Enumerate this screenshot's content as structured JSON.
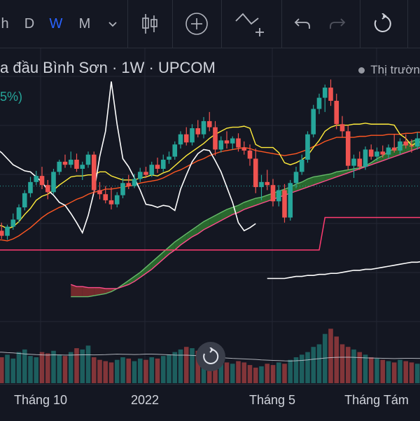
{
  "toolbar": {
    "intervals": [
      "h",
      "D",
      "W",
      "M"
    ],
    "active_interval": "W",
    "active_color": "#2962ff"
  },
  "legend": {
    "title": "a đầu Bình Sơn · 1W · UPCOM",
    "pct": "5%)",
    "market_status": "Thị trườn"
  },
  "chart_data": {
    "type": "candlestick",
    "x_tick_labels": [
      "Tháng 10",
      "2022",
      "Tháng 5",
      "Tháng Tám"
    ],
    "colors": {
      "up": "#26a69a",
      "down": "#ef5350",
      "cloud_bull": "#2e7d32",
      "cloud_bear": "#8b2f2f"
    },
    "candles": [
      [
        19.4,
        20.5,
        19.1,
        20.1
      ],
      [
        20.1,
        20.9,
        19.3,
        19.6
      ],
      [
        19.6,
        20.7,
        19.2,
        20.5
      ],
      [
        20.5,
        21.8,
        20.2,
        21.2
      ],
      [
        21.2,
        22.7,
        20.9,
        22.4
      ],
      [
        22.4,
        24.1,
        22.1,
        23.8
      ],
      [
        23.8,
        25.4,
        23.4,
        24.9
      ],
      [
        24.9,
        26.0,
        24.6,
        25.5
      ],
      [
        25.5,
        26.4,
        24.2,
        24.6
      ],
      [
        24.6,
        25.1,
        23.2,
        23.9
      ],
      [
        23.9,
        26.2,
        23.7,
        25.9
      ],
      [
        25.9,
        27.1,
        25.6,
        26.9
      ],
      [
        26.9,
        27.6,
        26.3,
        26.6
      ],
      [
        26.6,
        27.9,
        26.3,
        27.1
      ],
      [
        27.1,
        27.7,
        25.9,
        26.2
      ],
      [
        26.2,
        26.9,
        25.1,
        26.6
      ],
      [
        26.6,
        27.9,
        26.3,
        27.6
      ],
      [
        27.6,
        27.9,
        23.7,
        24.1
      ],
      [
        24.1,
        24.9,
        23.2,
        23.7
      ],
      [
        23.7,
        24.5,
        22.8,
        23.1
      ],
      [
        23.1,
        24.4,
        22.2,
        22.7
      ],
      [
        22.7,
        23.9,
        22.4,
        23.6
      ],
      [
        23.6,
        25.3,
        23.3,
        24.8
      ],
      [
        24.8,
        25.6,
        24.2,
        24.5
      ],
      [
        24.5,
        25.7,
        24.3,
        25.2
      ],
      [
        25.2,
        26.3,
        24.9,
        25.9
      ],
      [
        25.9,
        26.4,
        25.3,
        25.6
      ],
      [
        25.6,
        26.9,
        25.4,
        26.6
      ],
      [
        26.6,
        27.3,
        25.8,
        26.2
      ],
      [
        26.2,
        27.6,
        25.9,
        27.1
      ],
      [
        27.1,
        27.9,
        26.7,
        27.4
      ],
      [
        27.4,
        28.9,
        27.1,
        28.6
      ],
      [
        28.6,
        29.9,
        28.2,
        29.6
      ],
      [
        29.6,
        30.3,
        28.5,
        28.8
      ],
      [
        28.8,
        30.6,
        28.5,
        30.2
      ],
      [
        30.2,
        31.0,
        29.3,
        29.6
      ],
      [
        29.6,
        31.3,
        29.2,
        30.9
      ],
      [
        30.9,
        31.8,
        29.9,
        30.3
      ],
      [
        30.3,
        30.9,
        27.5,
        28.1
      ],
      [
        28.1,
        29.4,
        27.8,
        29.0
      ],
      [
        29.0,
        29.9,
        28.2,
        28.7
      ],
      [
        28.7,
        29.4,
        28.1,
        29.2
      ],
      [
        29.2,
        29.7,
        27.9,
        28.3
      ],
      [
        28.3,
        28.9,
        27.6,
        28.0
      ],
      [
        28.0,
        28.6,
        26.5,
        27.2
      ],
      [
        27.2,
        28.2,
        23.8,
        24.4
      ],
      [
        24.4,
        25.6,
        23.1,
        24.9
      ],
      [
        24.9,
        26.1,
        24.1,
        24.6
      ],
      [
        24.6,
        25.2,
        22.5,
        23.0
      ],
      [
        23.0,
        24.6,
        22.5,
        24.1
      ],
      [
        24.1,
        24.7,
        20.9,
        21.4
      ],
      [
        21.4,
        25.1,
        21.1,
        24.8
      ],
      [
        24.8,
        26.4,
        24.3,
        25.9
      ],
      [
        25.9,
        27.6,
        25.6,
        27.1
      ],
      [
        27.1,
        29.9,
        26.8,
        29.6
      ],
      [
        29.6,
        32.5,
        29.3,
        32.1
      ],
      [
        32.1,
        33.6,
        31.6,
        33.2
      ],
      [
        33.2,
        34.5,
        31.8,
        34.2
      ],
      [
        34.2,
        35.0,
        32.4,
        32.9
      ],
      [
        32.9,
        33.6,
        30.1,
        30.6
      ],
      [
        30.6,
        31.4,
        29.3,
        29.9
      ],
      [
        29.9,
        30.5,
        26.1,
        26.5
      ],
      [
        26.5,
        27.6,
        25.3,
        27.2
      ],
      [
        27.2,
        27.9,
        26.1,
        26.4
      ],
      [
        26.4,
        28.4,
        26.1,
        28.1
      ],
      [
        28.1,
        28.6,
        27.1,
        27.4
      ],
      [
        27.4,
        28.3,
        27.0,
        27.9
      ],
      [
        27.9,
        28.5,
        27.3,
        27.6
      ],
      [
        27.6,
        28.6,
        27.2,
        28.3
      ],
      [
        28.3,
        29.6,
        27.8,
        28.0
      ],
      [
        28.0,
        29.2,
        27.6,
        28.9
      ],
      [
        28.9,
        29.6,
        28.2,
        28.5
      ],
      [
        28.5,
        29.1,
        27.8,
        28.4
      ],
      [
        28.4,
        29.8,
        28.1,
        29.2
      ],
      [
        29.2,
        29.6,
        28.3,
        28.6
      ],
      [
        28.6,
        29.0,
        27.8,
        28.2
      ]
    ],
    "volume": [
      18,
      20,
      22,
      19,
      24,
      26,
      21,
      20,
      24,
      23,
      25,
      22,
      21,
      24,
      27,
      26,
      29,
      20,
      18,
      17,
      16,
      18,
      20,
      19,
      17,
      19,
      18,
      20,
      19,
      21,
      22,
      24,
      26,
      28,
      27,
      25,
      23,
      21,
      19,
      18,
      16,
      15,
      17,
      16,
      14,
      12,
      13,
      15,
      14,
      16,
      15,
      18,
      20,
      22,
      24,
      28,
      30,
      38,
      42,
      36,
      30,
      28,
      26,
      24,
      22,
      20,
      19,
      18,
      17,
      16,
      18,
      17,
      16,
      15,
      17,
      18
    ],
    "volume_ma": [
      24.0,
      23.9,
      23.6,
      23.4,
      23.0,
      22.6,
      22.3,
      22.0,
      21.8,
      21.7,
      21.9,
      21.8,
      21.7,
      21.7,
      21.8,
      21.9,
      21.9,
      21.8,
      21.9,
      22.0,
      22.2,
      22.4,
      22.3,
      22.2,
      22.1,
      22.2,
      22.4,
      22.4,
      22.3,
      22.1,
      21.9,
      21.7,
      21.6,
      21.6,
      21.4,
      21.2,
      20.9,
      20.6,
      20.2,
      19.7,
      19.4,
      19.1,
      18.9,
      18.7,
      18.5,
      18.3,
      18.0,
      17.8,
      17.6,
      17.4,
      17.2,
      17.1,
      17.3,
      17.6,
      18.0,
      18.5,
      18.9,
      19.4,
      19.7,
      19.9,
      20.0,
      20.0,
      19.9,
      19.7,
      19.5,
      19.4,
      19.3,
      19.2,
      19.1,
      19.0,
      19.1,
      19.2,
      19.2,
      19.1,
      19.2,
      19.3
    ],
    "tenkan": [
      20.6,
      20.6,
      20.3,
      20.5,
      21.0,
      21.7,
      22.3,
      23.1,
      23.5,
      23.7,
      24.1,
      24.6,
      25.0,
      25.4,
      25.5,
      25.5,
      25.6,
      25.6,
      25.9,
      25.9,
      25.5,
      25.3,
      25.1,
      25.1,
      25.1,
      25.3,
      25.4,
      25.6,
      25.5,
      25.8,
      26.0,
      26.5,
      27.0,
      27.5,
      27.9,
      28.3,
      28.7,
      29.2,
      29.6,
      29.9,
      30.2,
      30.3,
      30.3,
      30.4,
      30.2,
      28.6,
      28.3,
      28.3,
      28.3,
      27.8,
      26.8,
      26.6,
      26.8,
      27.1,
      27.5,
      28.3,
      29.0,
      29.9,
      30.3,
      30.5,
      30.5,
      30.5,
      30.6,
      30.6,
      30.7,
      30.6,
      30.6,
      30.6,
      30.6,
      30.5,
      29.6,
      29.2,
      28.5,
      28.8,
      28.9,
      28.9
    ],
    "kijun": [
      19.2,
      19.2,
      19.1,
      19.3,
      19.6,
      20.0,
      20.4,
      20.9,
      21.4,
      21.8,
      22.1,
      22.4,
      22.6,
      22.9,
      23.2,
      23.4,
      23.7,
      23.9,
      24.0,
      24.2,
      24.2,
      24.3,
      24.4,
      24.5,
      24.6,
      24.8,
      24.9,
      25.0,
      25.1,
      25.3,
      25.6,
      25.9,
      26.1,
      26.4,
      26.7,
      27.0,
      27.2,
      27.5,
      27.7,
      27.9,
      28.0,
      28.1,
      28.2,
      28.3,
      28.2,
      28.0,
      27.9,
      27.8,
      27.7,
      27.6,
      27.5,
      27.6,
      27.7,
      27.9,
      28.1,
      28.4,
      28.6,
      28.9,
      29.1,
      29.3,
      29.3,
      29.3,
      29.3,
      29.4,
      29.4,
      29.5,
      29.5,
      29.5,
      29.6,
      29.6,
      29.6,
      29.7,
      29.7,
      29.8,
      29.8,
      29.9
    ],
    "lagging": [
      28.2,
      27.8,
      27.2,
      26.6,
      26.3,
      26.0,
      25.9,
      25.4,
      24.9,
      24.1,
      23.6,
      22.9,
      22.6,
      21.8,
      20.9,
      19.9,
      21.6,
      23.9,
      27.4,
      29.9,
      34.8,
      30.6,
      27.2,
      26.4,
      25.3,
      24.1,
      22.7,
      22.6,
      22.4,
      22.6,
      22.5,
      22.1,
      24.2,
      25.6,
      26.9,
      27.7,
      28.1,
      28.0,
      27.0,
      25.9,
      24.4,
      22.9,
      20.9,
      20.1,
      20.4,
      20.8
    ],
    "span_a": [
      13.6,
      13.6,
      13.6,
      13.6,
      13.7,
      13.8,
      13.9,
      14.1,
      14.4,
      14.8,
      15.2,
      15.6,
      16.0,
      16.5,
      17.0,
      17.5,
      18.0,
      18.5,
      19.0,
      19.4,
      19.8,
      20.2,
      20.6,
      21.0,
      21.3,
      21.6,
      21.9,
      22.2,
      22.4,
      22.6,
      22.9,
      23.1,
      23.3,
      23.4,
      23.6,
      23.8,
      24.0,
      24.2,
      24.4,
      24.7,
      24.9,
      25.2,
      25.4,
      25.5,
      25.6,
      25.7,
      25.9,
      26.0,
      26.1,
      26.2,
      26.3,
      26.5,
      26.8,
      27.2,
      27.5,
      27.9,
      28.2,
      28.4,
      28.7,
      28.9,
      29.1,
      29.2,
      29.3
    ],
    "span_b": [
      14.8,
      14.6,
      14.6,
      14.5,
      14.5,
      14.5,
      14.4,
      14.4,
      14.4,
      14.6,
      14.8,
      15.1,
      15.5,
      15.9,
      16.3,
      16.8,
      17.3,
      17.8,
      18.2,
      18.7,
      19.1,
      19.5,
      19.8,
      20.2,
      20.5,
      20.8,
      21.1,
      21.4,
      21.7,
      21.9,
      22.2,
      22.4,
      22.6,
      22.8,
      23.0,
      23.2,
      23.4,
      23.6,
      23.8,
      24.0,
      24.2,
      24.4,
      24.6,
      24.8,
      25.0,
      25.2,
      25.4,
      25.6,
      25.8,
      26.0,
      26.2,
      26.4,
      26.6,
      26.8,
      27.0,
      27.2,
      27.4,
      27.6,
      27.8,
      28.0,
      28.2,
      28.4,
      28.6
    ],
    "red_step": [
      18.2,
      18.2,
      18.2,
      18.2,
      18.2,
      18.2,
      18.2,
      18.2,
      18.2,
      18.2,
      18.2,
      18.2,
      18.2,
      18.2,
      18.2,
      18.2,
      18.2,
      18.2,
      18.2,
      18.2,
      18.2,
      18.2,
      18.2,
      18.2,
      18.2,
      18.2,
      18.2,
      18.2,
      18.2,
      18.2,
      18.2,
      18.2,
      18.2,
      18.2,
      18.2,
      18.2,
      18.2,
      18.2,
      18.2,
      18.2,
      18.2,
      18.2,
      18.2,
      18.2,
      18.2,
      18.2,
      18.2,
      18.2,
      18.2,
      18.2,
      18.2,
      18.2,
      18.2,
      18.2,
      18.2,
      18.2,
      18.2,
      21.4,
      21.4,
      21.4,
      21.4,
      21.4,
      21.4,
      21.4,
      21.4,
      21.4,
      21.4,
      21.4,
      21.4,
      21.4,
      21.4,
      21.4,
      21.4,
      21.4,
      21.4,
      21.4
    ],
    "white_line": [
      null,
      null,
      null,
      null,
      null,
      null,
      null,
      null,
      null,
      null,
      null,
      null,
      null,
      null,
      null,
      null,
      null,
      null,
      null,
      null,
      null,
      null,
      null,
      null,
      null,
      null,
      null,
      null,
      null,
      null,
      null,
      null,
      null,
      null,
      null,
      null,
      null,
      null,
      null,
      null,
      null,
      null,
      null,
      null,
      null,
      null,
      null,
      15.4,
      15.4,
      15.4,
      15.4,
      15.5,
      15.6,
      15.6,
      15.7,
      15.7,
      15.8,
      15.8,
      15.9,
      15.9,
      16.0,
      16.1,
      16.2,
      16.2,
      16.3,
      16.3,
      16.4,
      16.5,
      16.6,
      16.7,
      16.8,
      16.9,
      17.0,
      17.0,
      17.1,
      17.2
    ]
  }
}
